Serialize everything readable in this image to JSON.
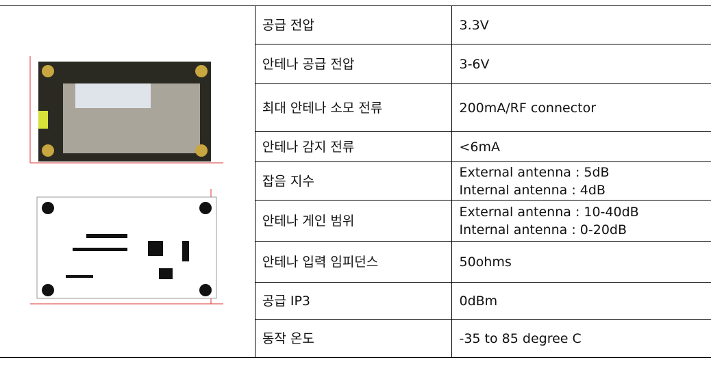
{
  "table": {
    "rows": [
      {
        "label": "공급 전압",
        "value": [
          "3.3V"
        ]
      },
      {
        "label": "안테나 공급 전압",
        "value": [
          "3-6V"
        ]
      },
      {
        "label": "최대 안테나 소모 전류",
        "value": [
          "200mA/RF connector"
        ]
      },
      {
        "label": "안테나 감지 전류",
        "value": [
          "<6mA"
        ]
      },
      {
        "label": "잡음 지수",
        "value": [
          "External antenna : 5dB",
          "Internal antenna : 4dB"
        ]
      },
      {
        "label": "안테나 게인 범위",
        "value": [
          "External antenna : 10-40dB",
          "Internal antenna : 0-20dB"
        ]
      },
      {
        "label": "안테나 입력 임피던스",
        "value": [
          "50ohms"
        ]
      },
      {
        "label": "공급 IP3",
        "value": [
          "0dBm"
        ]
      },
      {
        "label": "동작 온도",
        "value": [
          "-35 to 85 degree C"
        ]
      }
    ]
  }
}
